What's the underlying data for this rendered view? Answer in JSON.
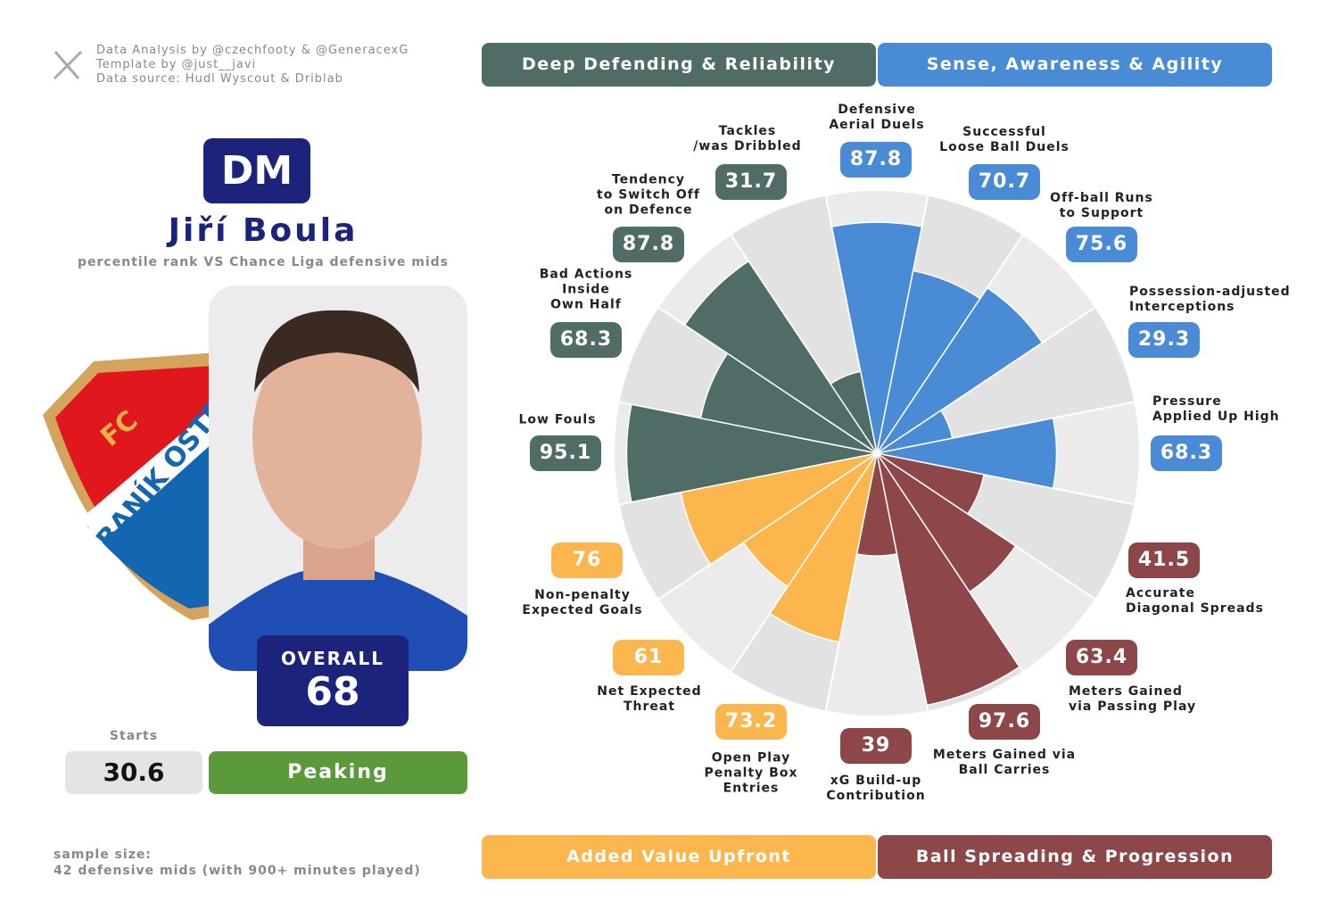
{
  "credits": [
    "Data Analysis by @czechfooty & @GeneracexG",
    "Template by @just__javi",
    "Data source: Hudl Wyscout & Driblab"
  ],
  "position": "DM",
  "player_name": "Jiří Boula",
  "subtitle": "percentile rank VS Chance Liga defensive mids",
  "club_logo": {
    "top": "FC",
    "band": "BANÍK OSTRAVA"
  },
  "overall_label": "OVERALL",
  "overall": 68,
  "starts_label": "Starts",
  "starts": 30.6,
  "status": "Peaking",
  "sample_size": [
    "sample size:",
    "42 defensive mids (with 900+ minutes played)"
  ],
  "chart_data": {
    "type": "pizza",
    "ylim": [
      0,
      100
    ],
    "series": [
      {
        "name": "Sense, Awareness & Agility",
        "color": "#4a8bd6",
        "categories": [
          "Defensive\nAerial Duels",
          "Successful\nLoose Ball Duels",
          "Off-ball Runs\nto Support",
          "Possession-adjusted\nInterceptions",
          "Pressure\nApplied Up High"
        ],
        "values": [
          87.8,
          70.7,
          75.6,
          29.3,
          68.3
        ]
      },
      {
        "name": "Ball Spreading & Progression",
        "color": "#8e4748",
        "categories": [
          "Accurate\nDiagonal Spreads",
          "Meters Gained\nvia Passing Play",
          "Meters Gained via\nBall Carries",
          "xG Build-up\nContribution"
        ],
        "values": [
          41.5,
          63.4,
          97.6,
          39
        ]
      },
      {
        "name": "Added Value Upfront",
        "color": "#fbb74e",
        "categories": [
          "Open Play\nPenalty Box\nEntries",
          "Net Expected\nThreat",
          "Non-penalty\nExpected Goals"
        ],
        "values": [
          73.2,
          61,
          76
        ]
      },
      {
        "name": "Deep Defending & Reliability",
        "color": "#4f6d66",
        "categories": [
          "Low Fouls",
          "Bad Actions\nInside\nOwn Half",
          "Tendency\nto Switch Off\non Defence",
          "Tackles\n/was Dribbled"
        ],
        "values": [
          95.1,
          68.3,
          87.8,
          31.7
        ]
      }
    ]
  }
}
